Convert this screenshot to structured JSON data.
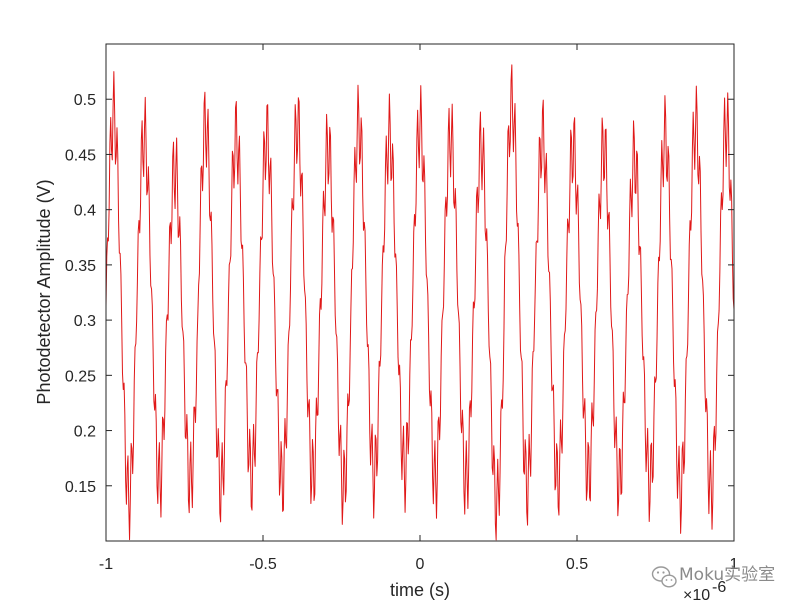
{
  "chart_data": {
    "type": "line",
    "title": "",
    "xlabel": "time (s)",
    "ylabel": "Photodetector Amplitude (V)",
    "x_exponent_label": "×10",
    "x_exponent_power": "-6",
    "xlim": [
      -1.0,
      1.0
    ],
    "ylim": [
      0.1,
      0.55
    ],
    "x_ticks": [
      -1,
      -0.5,
      0,
      0.5,
      1
    ],
    "x_tick_labels": [
      "-1",
      "-0.5",
      "0",
      "0.5",
      "1"
    ],
    "y_ticks": [
      0.15,
      0.2,
      0.25,
      0.3,
      0.35,
      0.4,
      0.45,
      0.5
    ],
    "y_tick_labels": [
      "0.15",
      "0.2",
      "0.25",
      "0.3",
      "0.35",
      "0.4",
      "0.45",
      "0.5"
    ],
    "grid": false,
    "line_color": "#e01818",
    "series": [
      {
        "x_start": -1.0,
        "x_end": 1.0,
        "samples": 801,
        "main_cycles": 20.5,
        "main_phase_rad": -1.57,
        "center_v": 0.315,
        "main_amplitude_v": 0.155,
        "ripple_cycles": 180,
        "ripple_amplitude_v": 0.038,
        "peak_values_v": [
          0.51,
          0.49,
          0.46,
          0.5,
          0.49,
          0.49,
          0.5,
          0.48,
          0.5,
          0.49,
          0.5,
          0.49,
          0.48,
          0.52,
          0.49,
          0.48,
          0.48,
          0.47,
          0.49,
          0.5,
          0.5
        ],
        "trough_values_v": [
          0.115,
          0.13,
          0.13,
          0.125,
          0.135,
          0.13,
          0.135,
          0.125,
          0.135,
          0.14,
          0.13,
          0.13,
          0.11,
          0.125,
          0.13,
          0.135,
          0.13,
          0.13,
          0.12,
          0.12,
          0.12
        ]
      }
    ]
  },
  "watermark": {
    "text": "Moku实验室",
    "icon": "wechat-icon"
  }
}
